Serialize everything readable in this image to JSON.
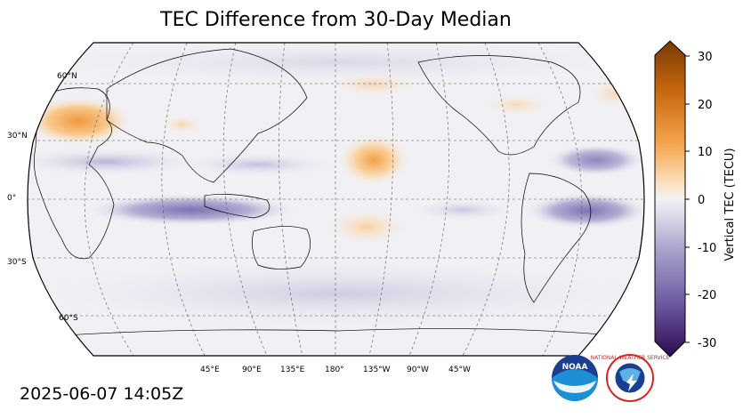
{
  "title": "TEC Difference from 30-Day Median",
  "timestamp": "2025-06-07 14:05Z",
  "map": {
    "projection": "Robinson",
    "central_longitude": 180,
    "lat_labels": [
      "60°N",
      "30°N",
      "0°",
      "30°S",
      "60°S"
    ],
    "lon_labels": [
      "45°E",
      "90°E",
      "135°E",
      "180°",
      "135°W",
      "90°W",
      "45°W"
    ],
    "anomalies": [
      {
        "region": "Europe",
        "sign": "positive",
        "peak_tecu": 12
      },
      {
        "region": "Central Pacific (north)",
        "sign": "positive",
        "peak_tecu": 10
      },
      {
        "region": "Central Pacific (south)",
        "sign": "positive",
        "peak_tecu": 5
      },
      {
        "region": "Indian Ocean / Indonesia equatorial",
        "sign": "negative",
        "peak_tecu": -12
      },
      {
        "region": "South America equatorial",
        "sign": "negative",
        "peak_tecu": -13
      },
      {
        "region": "Western Atlantic",
        "sign": "negative",
        "peak_tecu": -9
      }
    ]
  },
  "colorbar": {
    "label": "Vertical TEC (TECU)",
    "min": -30,
    "max": 30,
    "ticks": [
      "30",
      "20",
      "10",
      "0",
      "-10",
      "-20",
      "-30"
    ],
    "colors": {
      "high": "#7a3a05",
      "mid_high": "#f59f3a",
      "zero": "#f2f2f4",
      "mid_low": "#8d83bd",
      "low": "#2d0a4f"
    }
  },
  "logos": [
    {
      "name": "noaa-logo",
      "text": "NOAA"
    },
    {
      "name": "nws-logo",
      "text": "NATIONAL WEATHER SERVICE"
    }
  ]
}
